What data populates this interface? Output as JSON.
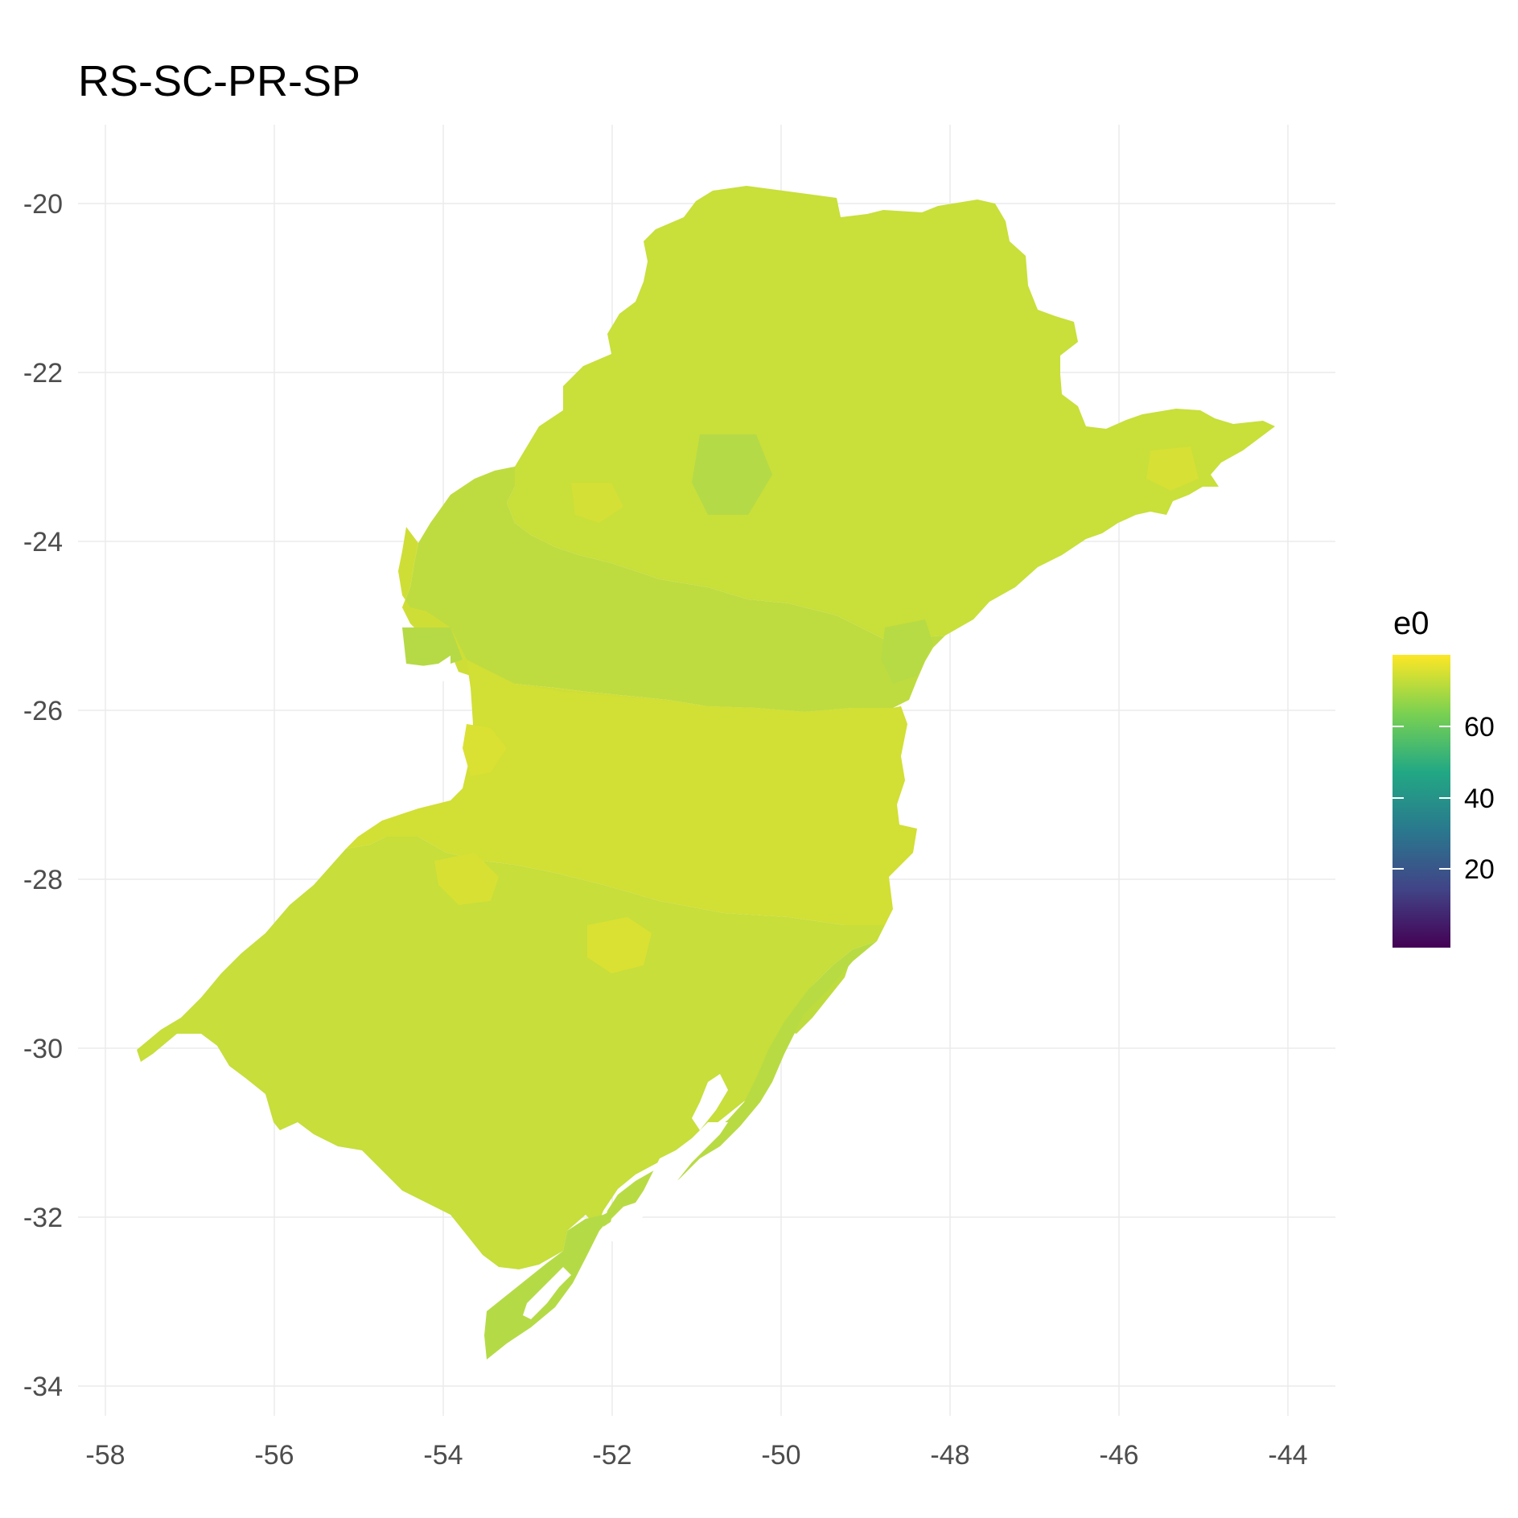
{
  "title": "RS-SC-PR-SP",
  "map": {
    "x_ticks": [
      "-58",
      "-56",
      "-54",
      "-52",
      "-50",
      "-48",
      "-46",
      "-44"
    ],
    "y_ticks": [
      "-20",
      "-22",
      "-24",
      "-26",
      "-28",
      "-30",
      "-32",
      "-34"
    ],
    "grid": true,
    "region_fill_colors": [
      "#c8df3a",
      "#bfdd3e",
      "#d0df36",
      "#b4db46",
      "#dae133"
    ],
    "legend": {
      "title": "e0",
      "labels": [
        "60",
        "40",
        "20"
      ],
      "colormap": "viridis",
      "colors": [
        "#fde725",
        "#7ad151",
        "#22a884",
        "#2a788e",
        "#414487",
        "#440154"
      ]
    }
  }
}
